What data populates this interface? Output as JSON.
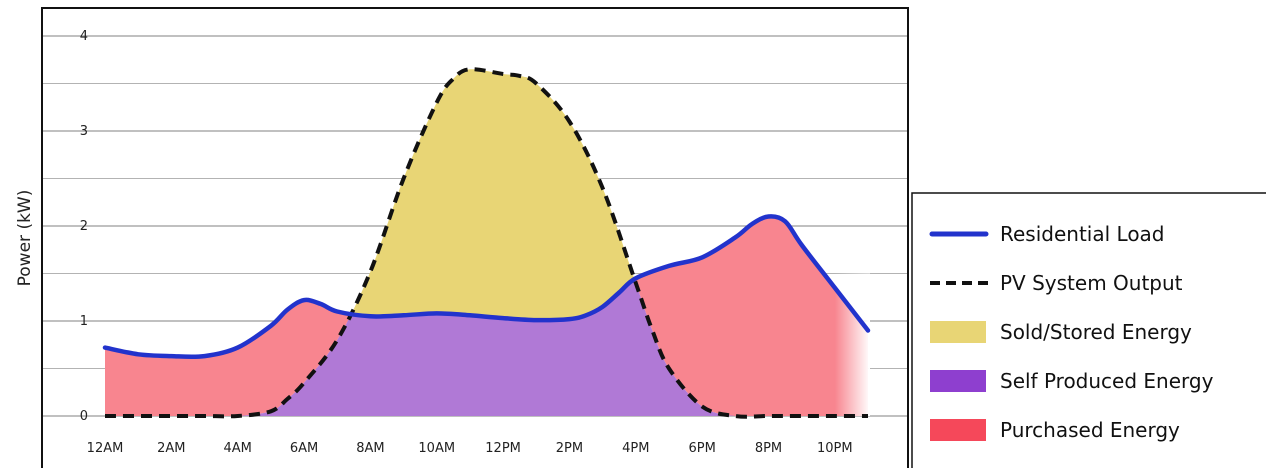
{
  "chart_data": {
    "type": "area",
    "xlabel": "",
    "ylabel": "Power (kW)",
    "ylim": [
      0,
      4
    ],
    "y_ticks": [
      "0",
      "1",
      "2",
      "3",
      "4"
    ],
    "x_tick_labels": [
      "12AM",
      "2AM",
      "4AM",
      "6AM",
      "8AM",
      "10AM",
      "12PM",
      "2PM",
      "4PM",
      "6PM",
      "8PM",
      "10PM"
    ],
    "grid": true,
    "legend_position": "right",
    "legend": [
      {
        "label": "Residential Load",
        "kind": "line",
        "color": "#2233cc"
      },
      {
        "label": "PV System Output",
        "kind": "dashed",
        "color": "#111111"
      },
      {
        "label": "Sold/Stored Energy",
        "kind": "area",
        "color": "#e8d575"
      },
      {
        "label": "Self Produced Energy",
        "kind": "area",
        "color": "#8e3fcf"
      },
      {
        "label": "Purchased Energy",
        "kind": "area",
        "color": "#f5485a"
      }
    ],
    "series": [
      {
        "name": "Residential Load",
        "x": [
          0,
          1,
          2,
          3,
          4,
          5,
          5.5,
          6,
          6.5,
          7,
          8,
          9,
          10,
          11,
          12,
          13,
          14,
          14.5,
          15,
          15.5,
          16,
          17,
          18,
          19,
          19.5,
          20,
          20.5,
          21,
          22,
          23
        ],
        "y": [
          0.72,
          0.65,
          0.63,
          0.63,
          0.72,
          0.95,
          1.12,
          1.22,
          1.18,
          1.1,
          1.05,
          1.06,
          1.08,
          1.06,
          1.03,
          1.01,
          1.02,
          1.06,
          1.15,
          1.3,
          1.45,
          1.58,
          1.67,
          1.88,
          2.02,
          2.1,
          2.05,
          1.8,
          1.35,
          0.9
        ]
      },
      {
        "name": "PV System Output",
        "x": [
          0,
          1,
          2,
          3,
          4,
          5,
          5.5,
          6,
          7,
          8,
          9,
          10,
          10.5,
          11,
          12,
          12.5,
          13,
          14,
          15,
          16,
          16.5,
          17,
          18,
          19,
          20,
          21,
          22,
          23
        ],
        "y": [
          0,
          0,
          0,
          0,
          0,
          0.05,
          0.18,
          0.35,
          0.8,
          1.52,
          2.5,
          3.3,
          3.55,
          3.65,
          3.6,
          3.58,
          3.5,
          3.1,
          2.4,
          1.4,
          0.9,
          0.5,
          0.1,
          0,
          0,
          0,
          0,
          0
        ]
      }
    ]
  },
  "colors": {
    "load": "#2233cc",
    "pv": "#111111",
    "sold": "#e8d575",
    "self": "#b079d6",
    "purchased": "#f8858f",
    "grid": "#9a9a9a",
    "frame": "#111111"
  }
}
